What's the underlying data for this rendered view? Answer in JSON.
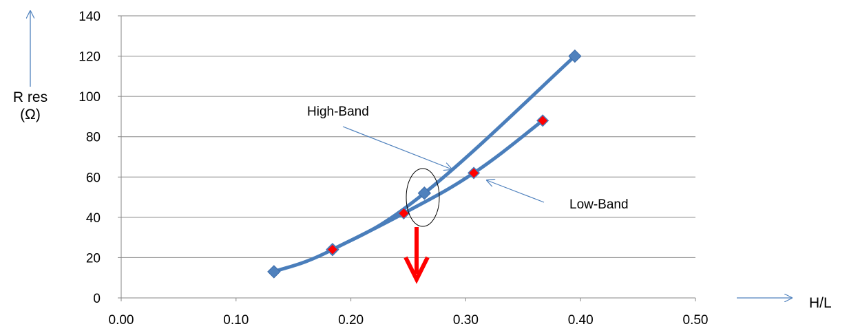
{
  "chart_data": {
    "type": "line",
    "xlabel": "H/L",
    "ylabel": "R res",
    "ylabel_unit": "(Ω)",
    "xlim": [
      0.0,
      0.5
    ],
    "ylim": [
      0,
      140
    ],
    "x_ticks": [
      "0.00",
      "0.10",
      "0.20",
      "0.30",
      "0.40",
      "0.50"
    ],
    "y_ticks": [
      "0",
      "20",
      "40",
      "60",
      "80",
      "100",
      "120",
      "140"
    ],
    "grid": "horizontal",
    "series": [
      {
        "name": "High-Band",
        "color": "#4a7ebb",
        "marker_color": "#4f81bd",
        "x": [
          0.133,
          0.184,
          0.264,
          0.395
        ],
        "y": [
          13,
          24,
          52,
          120
        ]
      },
      {
        "name": "Low-Band",
        "color": "#4a7ebb",
        "marker_color": "#ff0000",
        "x": [
          0.184,
          0.246,
          0.307,
          0.367
        ],
        "y": [
          24,
          42,
          62,
          88
        ]
      }
    ],
    "annotations": [
      {
        "text": "High-Band",
        "type": "callout-arrow"
      },
      {
        "text": "Low-Band",
        "type": "callout-arrow"
      },
      {
        "type": "ellipse",
        "desc": "highlights point at x≈0.264, y≈52"
      },
      {
        "type": "down-arrow",
        "color": "#ff0000"
      }
    ]
  }
}
